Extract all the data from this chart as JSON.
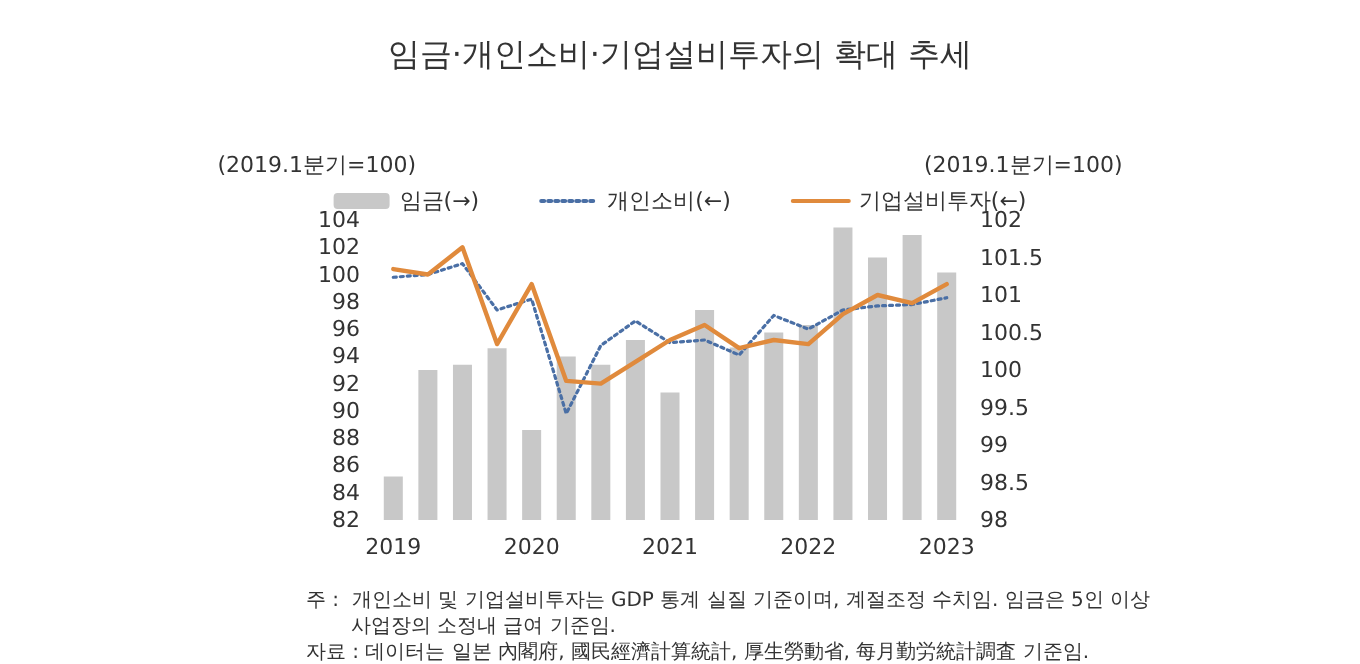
{
  "chart_data": {
    "type": "bar",
    "title": "임금·개인소비·기업설비투자의 확대 추세",
    "ylabel": "(2019.1분기=100)",
    "y2label": "(2019.1분기=100)",
    "categories": [
      "2019",
      null,
      null,
      null,
      "2020",
      null,
      null,
      null,
      "2021",
      null,
      null,
      null,
      "2022",
      null,
      null,
      null,
      "2023"
    ],
    "series": [
      {
        "name": "임금(→)",
        "axis": "y2",
        "color": "#c8c8c8",
        "values": [
          98.58,
          100.0,
          100.07,
          100.29,
          99.2,
          100.18,
          100.07,
          100.4,
          99.7,
          100.8,
          100.3,
          100.5,
          100.6,
          101.9,
          101.5,
          101.8,
          101.3
        ]
      },
      {
        "name": "개인소비(←)",
        "type": "line",
        "line_style": "dotted",
        "color": "#4a6fa5",
        "values": [
          99.8,
          100.0,
          100.8,
          97.4,
          98.2,
          89.8,
          94.8,
          96.6,
          95.0,
          95.2,
          94.1,
          97.0,
          96.0,
          97.4,
          97.7,
          97.8,
          98.3
        ]
      },
      {
        "name": "기업설비투자(←)",
        "type": "line",
        "line_style": "solid",
        "color": "#e08a3c",
        "values": [
          100.4,
          100.0,
          102.0,
          94.9,
          99.3,
          92.2,
          92.0,
          93.6,
          95.2,
          96.3,
          94.6,
          95.2,
          94.9,
          97.1,
          98.5,
          97.9,
          99.3
        ]
      }
    ],
    "ylim": [
      82,
      104
    ],
    "yticks": [
      82,
      84,
      86,
      88,
      90,
      92,
      94,
      96,
      98,
      100,
      102,
      104
    ],
    "y2lim": [
      98,
      102
    ],
    "y2ticks": [
      98,
      98.5,
      99,
      99.5,
      100,
      100.5,
      101,
      101.5,
      102
    ],
    "grid": false,
    "legend": "top",
    "marker": "none",
    "annotations": [
      "주 :  개인소비 및 기업설비투자는 GDP 통계 실질 기준이며, 계절조정 수치임. 임금은 5인 이상\n       사업장의 소정내 급여 기준임.",
      "자료 : 데이터는 일본 內閣府, 國民經濟計算統計, 厚生勞動省, 每月勤労統計調査 기준임."
    ]
  }
}
